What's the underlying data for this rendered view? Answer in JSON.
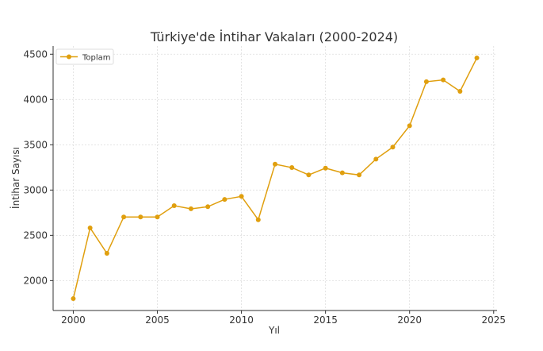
{
  "chart_data": {
    "type": "line",
    "title": "Türkiye'de İntihar Vakaları (2000-2024)",
    "xlabel": "Yıl",
    "ylabel": "İntihar Sayısı",
    "xlim": [
      1998.8,
      2025.2
    ],
    "ylim": [
      1670,
      4590
    ],
    "xticks": [
      2000,
      2005,
      2010,
      2015,
      2020,
      2025
    ],
    "yticks": [
      2000,
      2500,
      3000,
      3500,
      4000,
      4500
    ],
    "grid": true,
    "legend": "top-left",
    "series": [
      {
        "name": "Toplam",
        "color": "#e09f0e",
        "x": [
          2000,
          2001,
          2002,
          2003,
          2004,
          2005,
          2006,
          2007,
          2008,
          2009,
          2010,
          2011,
          2012,
          2013,
          2014,
          2015,
          2016,
          2017,
          2018,
          2019,
          2020,
          2021,
          2022,
          2023,
          2024
        ],
        "y": [
          1801,
          2582,
          2301,
          2703,
          2703,
          2703,
          2827,
          2793,
          2816,
          2897,
          2930,
          2672,
          3286,
          3248,
          3167,
          3242,
          3190,
          3167,
          3342,
          3474,
          3710,
          4196,
          4216,
          4090,
          4459
        ]
      }
    ]
  }
}
